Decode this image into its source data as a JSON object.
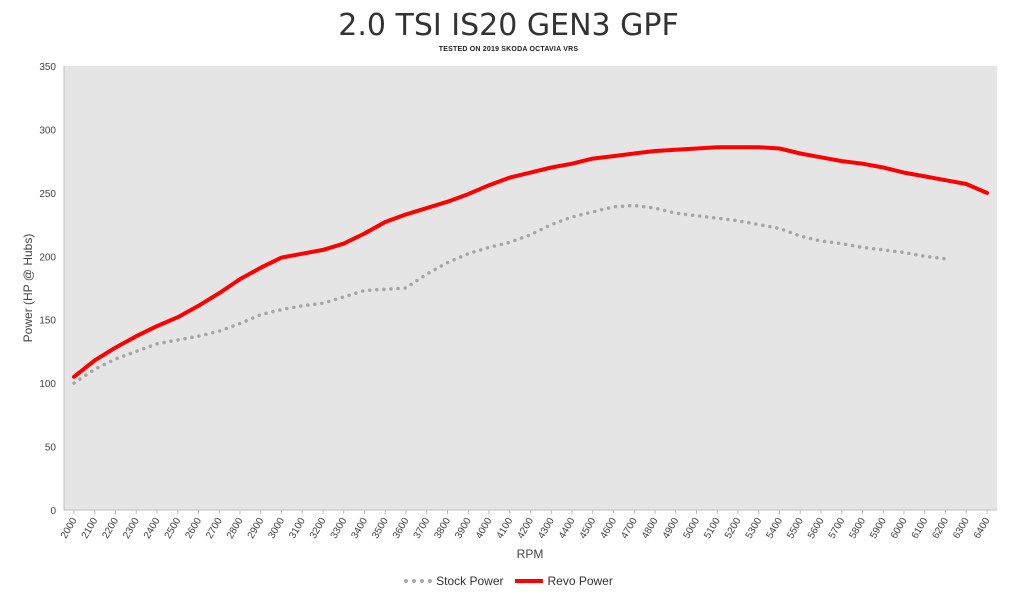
{
  "chart_data": {
    "type": "line",
    "title": "2.0 TSI IS20 GEN3 GPF",
    "subtitle": "TESTED ON 2019 SKODA OCTAVIA VRS",
    "xlabel": "RPM",
    "ylabel": "Power (HP @ Hubs)",
    "ylim": [
      0,
      350
    ],
    "yticks": [
      0,
      50,
      100,
      150,
      200,
      250,
      300,
      350
    ],
    "grid": false,
    "legend_position": "bottom-center",
    "x": [
      2000,
      2100,
      2200,
      2300,
      2400,
      2500,
      2600,
      2700,
      2800,
      2900,
      3000,
      3100,
      3200,
      3300,
      3400,
      3500,
      3600,
      3700,
      3800,
      3900,
      4000,
      4100,
      4200,
      4300,
      4400,
      4500,
      4600,
      4700,
      4800,
      4900,
      5000,
      5100,
      5200,
      5300,
      5400,
      5500,
      5600,
      5700,
      5800,
      5900,
      6000,
      6100,
      6200,
      6300,
      6400
    ],
    "series": [
      {
        "name": "Stock Power",
        "color": "#a6a6a6",
        "style": "dotted",
        "values": [
          100,
          111,
          119,
          125,
          131,
          134,
          137,
          141,
          147,
          154,
          158,
          161,
          163,
          168,
          173,
          174,
          175,
          186,
          195,
          202,
          207,
          211,
          217,
          225,
          231,
          235,
          239,
          240,
          238,
          234,
          232,
          230,
          228,
          225,
          222,
          216,
          212,
          210,
          207,
          205,
          203,
          200,
          198,
          null,
          null
        ]
      },
      {
        "name": "Revo Power",
        "color": "#ff0000",
        "style": "solid",
        "values": [
          105,
          118,
          128,
          137,
          145,
          152,
          161,
          171,
          182,
          191,
          199,
          202,
          205,
          210,
          218,
          227,
          233,
          238,
          243,
          249,
          256,
          262,
          266,
          270,
          273,
          277,
          279,
          281,
          283,
          284,
          285,
          286,
          286,
          286,
          285,
          281,
          278,
          275,
          273,
          270,
          266,
          263,
          260,
          257,
          250
        ]
      }
    ]
  }
}
